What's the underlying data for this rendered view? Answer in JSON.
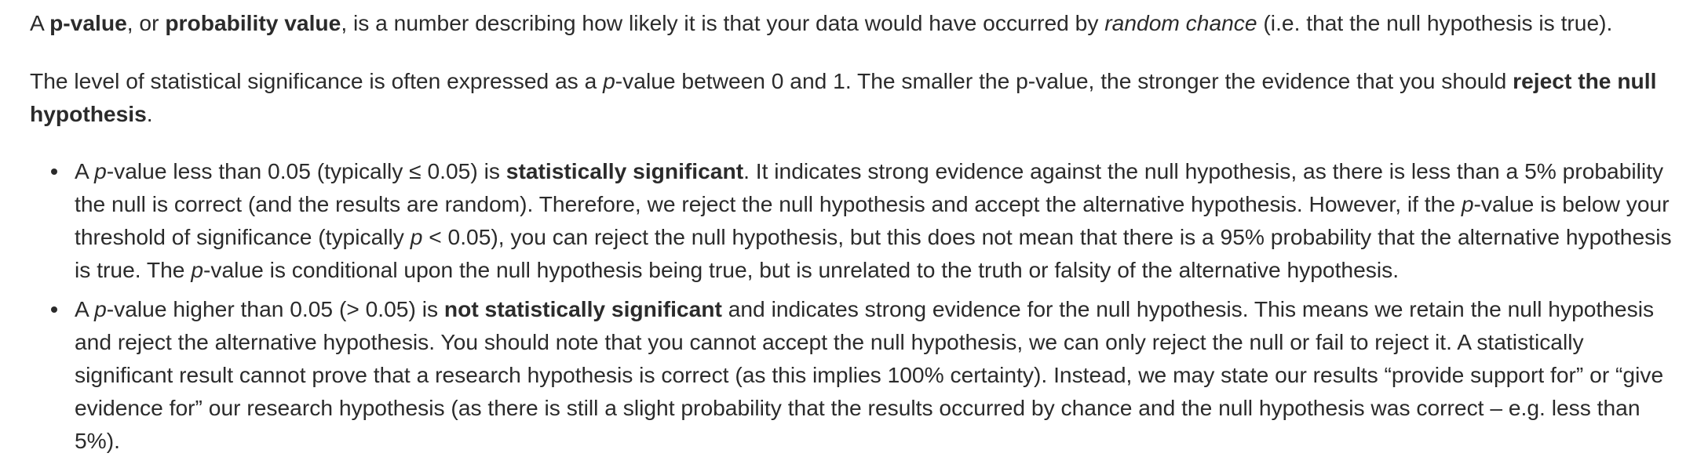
{
  "paragraph1": {
    "t1": "A ",
    "b1": "p-value",
    "t2": ", or ",
    "b2": "probability value",
    "t3": ", is a number describing how likely it is that your data would have occurred by ",
    "i1": "random chance",
    "t4": " (i.e. that the null hypothesis is true)."
  },
  "paragraph2": {
    "t1": "The level of statistical significance is often expressed as a ",
    "i1": "p",
    "t2": "-value between 0 and 1. The smaller the p-value, the stronger the evidence that you should ",
    "b1": "reject the null hypothesis",
    "t3": "."
  },
  "bullets": [
    {
      "t1": "A ",
      "i1": "p",
      "t2": "-value less than 0.05 (typically ≤ 0.05) is ",
      "b1": "statistically significant",
      "t3": ". It indicates strong evidence against the null hypothesis, as there is less than a 5% probability the null is correct (and the results are random). Therefore, we reject the null hypothesis and accept the alternative hypothesis. However, if the ",
      "i2": "p",
      "t4": "-value is below your threshold of significance (typically ",
      "i3": "p",
      "t5": " < 0.05), you can reject the null hypothesis, but this does not mean that there is a 95% probability that the alternative hypothesis is true. The ",
      "i4": "p",
      "t6": "-value is conditional upon the null hypothesis being true, but is unrelated to the truth or falsity of the alternative hypothesis."
    },
    {
      "t1": "A ",
      "i1": "p",
      "t2": "-value higher than 0.05 (> 0.05) is ",
      "b1": "not statistically significant",
      "t3": " and indicates strong evidence for the null hypothesis. This means we retain the null hypothesis and reject the alternative hypothesis. You should note that you cannot accept the null hypothesis, we can only reject the null or fail to reject it. A statistically significant result cannot prove that a research hypothesis is correct (as this implies 100% certainty). Instead, we may state our results “provide support for” or “give evidence for” our research hypothesis (as there is still a slight probability that the results occurred by chance and the null hypothesis was correct – e.g. less than 5%)."
    }
  ]
}
